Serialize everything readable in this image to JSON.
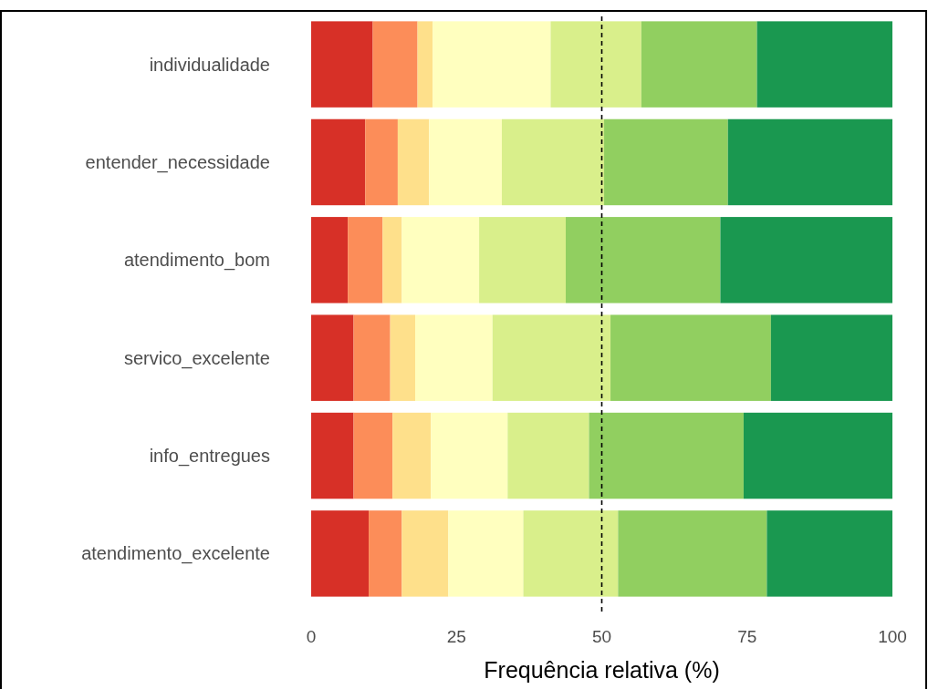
{
  "chart_data": {
    "type": "bar",
    "orientation": "horizontal",
    "stacked": true,
    "xlabel": "Frequência relativa (%)",
    "categories": [
      "individualidade",
      "entender_necessidade",
      "atendimento_bom",
      "servico_excelente",
      "info_entregues",
      "atendimento_excelente"
    ],
    "series": [
      {
        "color": "#d73027",
        "values": [
          10.6,
          9.3,
          6.3,
          7.3,
          7.3,
          9.9
        ]
      },
      {
        "color": "#fc8d59",
        "values": [
          7.7,
          5.6,
          6.0,
          6.3,
          6.7,
          5.7
        ]
      },
      {
        "color": "#fee08b",
        "values": [
          2.6,
          5.4,
          3.3,
          4.3,
          6.6,
          8.0
        ]
      },
      {
        "color": "#ffffbf",
        "values": [
          20.3,
          12.5,
          13.3,
          13.3,
          13.2,
          12.9
        ]
      },
      {
        "color": "#d9ef8b",
        "values": [
          15.6,
          17.6,
          14.9,
          20.3,
          14.0,
          16.3
        ]
      },
      {
        "color": "#91cf60",
        "values": [
          19.9,
          21.3,
          26.6,
          27.6,
          26.6,
          25.6
        ]
      },
      {
        "color": "#1a9850",
        "values": [
          23.3,
          28.3,
          29.6,
          20.9,
          25.6,
          21.6
        ]
      }
    ],
    "xlim": [
      0,
      100
    ],
    "xticks": [
      0,
      25,
      50,
      75,
      100
    ],
    "ref_lines": [
      {
        "axis": "x",
        "value": 50,
        "color": "#000000",
        "line_style": "dashed"
      }
    ]
  }
}
